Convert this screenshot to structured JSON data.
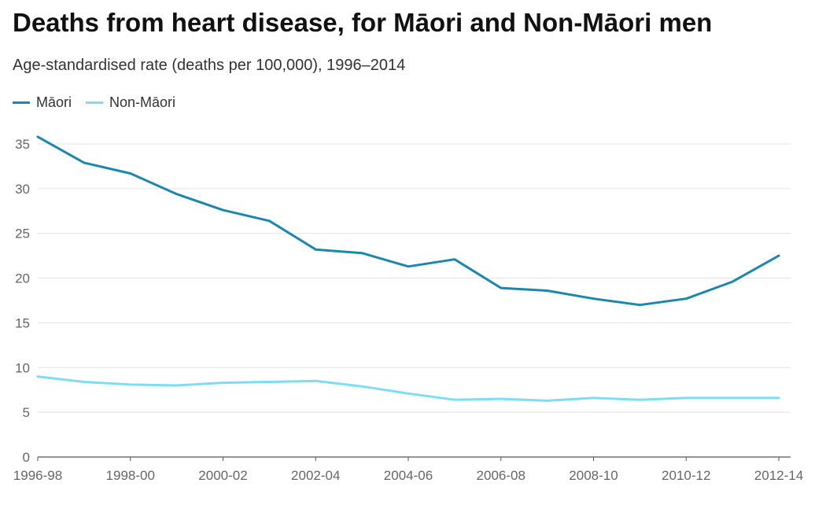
{
  "chart_data": {
    "type": "line",
    "title": "Deaths from heart disease, for Māori and Non-Māori men",
    "subtitle": "Age-standardised rate (deaths per 100,000), 1996–2014",
    "xlabel": "",
    "ylabel": "",
    "ylim": [
      0,
      35
    ],
    "yticks": [
      0,
      5,
      10,
      15,
      20,
      25,
      30,
      35
    ],
    "x_tick_labels": [
      "1996-98",
      "1998-00",
      "2000-02",
      "2002-04",
      "2004-06",
      "2006-08",
      "2008-10",
      "2010-12",
      "2012-14"
    ],
    "x": [
      "1996-98",
      "1997-99",
      "1998-00",
      "1999-01",
      "2000-02",
      "2001-03",
      "2002-04",
      "2003-05",
      "2004-06",
      "2005-07",
      "2006-08",
      "2007-09",
      "2008-10",
      "2009-11",
      "2010-12",
      "2011-13",
      "2012-14"
    ],
    "legend_position": "top-left",
    "grid": true,
    "series": [
      {
        "name": "Māori",
        "color": "#1b87ad",
        "values": [
          35.8,
          32.9,
          31.7,
          29.4,
          27.6,
          26.4,
          23.2,
          22.8,
          21.3,
          22.1,
          18.9,
          18.6,
          17.7,
          17.0,
          17.7,
          19.6,
          22.5
        ]
      },
      {
        "name": "Non-Māori",
        "color": "#7fdcf5",
        "values": [
          9.0,
          8.4,
          8.1,
          8.0,
          8.3,
          8.4,
          8.5,
          7.9,
          7.1,
          6.4,
          6.5,
          6.3,
          6.6,
          6.4,
          6.6,
          6.6,
          6.6
        ]
      }
    ]
  }
}
